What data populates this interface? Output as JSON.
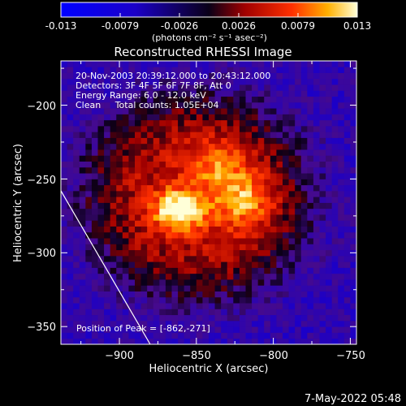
{
  "colorbar": {
    "tick_labels": [
      "-0.013",
      "-0.0079",
      "-0.0026",
      "0.0026",
      "0.0079",
      "0.013"
    ],
    "unit_label": "(photons cm⁻² s⁻¹ asec⁻²)",
    "range": [
      -0.013,
      0.013
    ]
  },
  "chart_data": {
    "type": "heatmap",
    "title": "Reconstructed RHESSI Image",
    "xlabel": "Heliocentric X (arcsec)",
    "ylabel": "Heliocentric Y (arcsec)",
    "xlim": [
      -938,
      -746
    ],
    "ylim": [
      -362,
      -170
    ],
    "x_ticks": [
      -900,
      -850,
      -800,
      -750
    ],
    "y_ticks": [
      -200,
      -250,
      -300,
      -350
    ],
    "annotations": [
      "20-Nov-2003 20:39:12.000 to 20:43:12.000",
      "Detectors: 3F 4F 5F 6F 7F 8F, Att 0",
      "Energy Range: 6.0 - 12.0 keV",
      "Clean     Total counts: 1.05E+04"
    ],
    "peak_label": "Position of Peak = [-862,-271]",
    "peak_position": [
      -862,
      -271
    ],
    "limb_line": [
      [
        -938,
        -258
      ],
      [
        -880,
        -362
      ]
    ],
    "sources": [
      {
        "x": -862,
        "y": -271,
        "intensity": 0.013
      },
      {
        "x": -820,
        "y": -265,
        "intensity": 0.0079
      },
      {
        "x": -835,
        "y": -240,
        "intensity": 0.006
      }
    ]
  },
  "footer": {
    "date": "7-May-2022 05:48"
  }
}
